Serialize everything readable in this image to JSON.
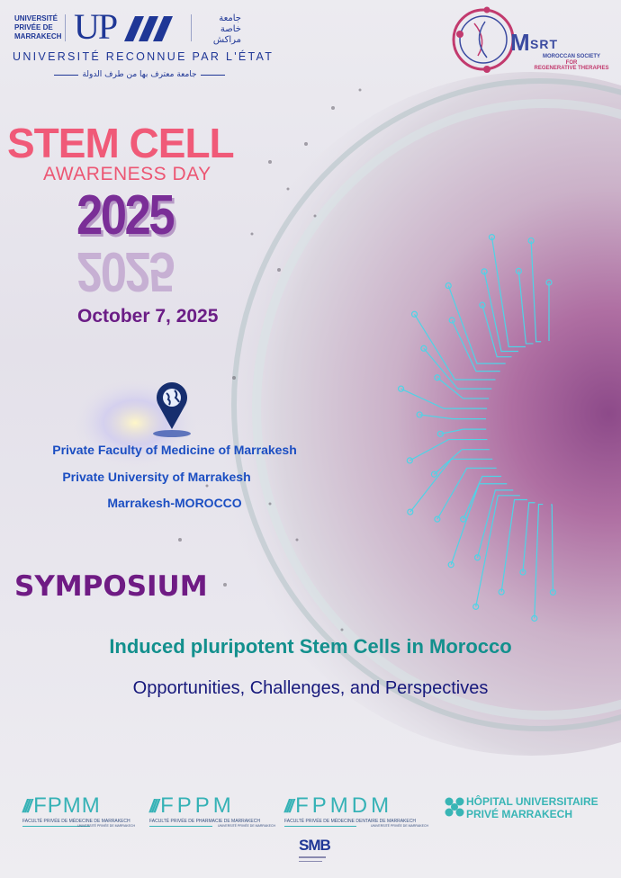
{
  "header": {
    "university_logo": {
      "name_lines": [
        "UNIVERSITÉ",
        "PRIVÉE DE",
        "MARRAKECH"
      ],
      "monogram": "UP",
      "arabic_lines": [
        "جامعة",
        "خاصة",
        "مراكش"
      ],
      "recognition": "UNIVERSITÉ RECONNUE PAR L'ÉTAT",
      "recognition_arabic": "جامعة معترف بها من طرف الدولة"
    },
    "society_logo": {
      "monogram_m": "M",
      "monogram_rest": "SRT",
      "lines": [
        "MOROCCAN SOCIETY",
        "FOR",
        "REGENERATIVE THERAPIES"
      ],
      "colors": {
        "ring": "#c23a6e",
        "text": "#3a4aa0"
      }
    }
  },
  "title": {
    "line1": "STEM CELL",
    "line2": "AWARENESS DAY",
    "year": "2025",
    "date": "October 7, 2025"
  },
  "location": {
    "icon": "map-pin-globe-icon",
    "lines": [
      "Private Faculty of Medicine of Marrakesh",
      "Private University of Marrakesh",
      "Marrakesh-MOROCCO"
    ]
  },
  "symposium": {
    "label": "SYMPOSIUM",
    "topic": "Induced pluripotent Stem Cells in Morocco",
    "subtitle": "Opportunities, Challenges, and Perspectives"
  },
  "partners": [
    {
      "abbr": "FPMM",
      "full": "FACULTÉ PRIVÉE DE MÉDECINE DE MARRAKECH",
      "sub": "UNIVERSITÉ PRIVÉE DE MARRAKECH"
    },
    {
      "abbr": "FPPM",
      "full": "FACULTÉ PRIVÉE DE PHARMACIE DE MARRAKECH",
      "sub": "UNIVERSITÉ PRIVÉE DE MARRAKECH"
    },
    {
      "abbr": "FPMDM",
      "full": "FACULTÉ PRIVÉE DE MÉDECINE DENTAIRE DE MARRAKECH",
      "sub": "UNIVERSITÉ PRIVÉE DE MARRAKECH"
    }
  ],
  "hospital": {
    "lines": [
      "HÔPITAL UNIVERSITAIRE",
      "PRIVÉ MARRAKECH"
    ]
  },
  "smb_logo": {
    "text": "SMB"
  },
  "colors": {
    "pink": "#f05a78",
    "purple": "#7a2e97",
    "blue": "#1b4ec2",
    "teal": "#13908d",
    "navy": "#17197c",
    "circuit": "#4fd3e6"
  }
}
